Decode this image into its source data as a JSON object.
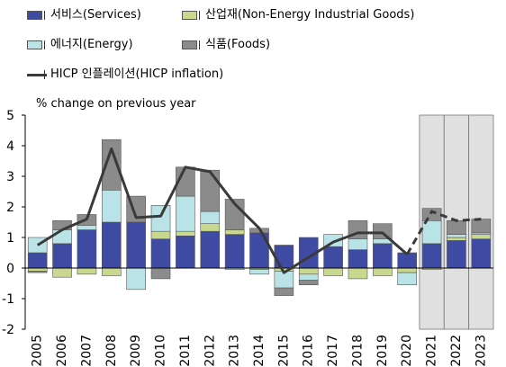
{
  "chart_data": {
    "type": "bar",
    "ylabel": "% change on previous year",
    "ylim": [
      -2,
      5
    ],
    "yticks": [
      -2,
      -1,
      0,
      1,
      2,
      3,
      4,
      5
    ],
    "categories": [
      "2005",
      "2006",
      "2007",
      "2008",
      "2009",
      "2010",
      "2011",
      "2012",
      "2013",
      "2014",
      "2015",
      "2016",
      "2017",
      "2018",
      "2019",
      "2020",
      "2021",
      "2022",
      "2023"
    ],
    "forecast_categories": [
      "2021",
      "2022",
      "2023"
    ],
    "legend": [
      {
        "key": "services",
        "label": "서비스(Services)"
      },
      {
        "key": "neig",
        "label": "산업재(Non-Energy Industrial Goods)"
      },
      {
        "key": "energy",
        "label": "에너지(Energy)"
      },
      {
        "key": "food",
        "label": "식품(Foods)"
      },
      {
        "key": "hicp",
        "label": "HICP 인플레이션(HICP  inflation)"
      }
    ],
    "series": [
      {
        "key": "services",
        "name": "서비스(Services)",
        "color": "#3f4aa3",
        "values": [
          0.5,
          0.8,
          1.25,
          1.5,
          1.5,
          0.95,
          1.05,
          1.2,
          1.1,
          1.15,
          0.75,
          1.0,
          0.7,
          0.6,
          0.8,
          0.5,
          0.8,
          0.9,
          0.95
        ]
      },
      {
        "key": "neig",
        "name": "산업재(Non-Energy Industrial Goods)",
        "color": "#c8d88e",
        "values": [
          -0.1,
          -0.3,
          -0.2,
          -0.25,
          0.0,
          0.25,
          0.15,
          0.25,
          0.15,
          -0.05,
          -0.1,
          -0.2,
          -0.25,
          -0.35,
          -0.25,
          -0.15,
          -0.05,
          0.1,
          0.15
        ]
      },
      {
        "key": "energy",
        "name": "에너지(Energy)",
        "color": "#b9e3e7",
        "values": [
          0.5,
          0.45,
          0.15,
          1.05,
          -0.7,
          0.85,
          1.15,
          0.4,
          -0.05,
          -0.15,
          -0.55,
          -0.2,
          0.4,
          0.35,
          0.15,
          -0.4,
          0.75,
          0.1,
          0.05
        ]
      },
      {
        "key": "food",
        "name": "식품(Foods)",
        "color": "#8b8b8b",
        "values": [
          -0.05,
          0.3,
          0.35,
          1.65,
          0.85,
          -0.35,
          0.95,
          1.35,
          1.0,
          0.15,
          -0.25,
          -0.15,
          0.0,
          0.6,
          0.5,
          0.0,
          0.4,
          0.45,
          0.45
        ]
      },
      {
        "key": "hicp",
        "name": "HICP 인플레이션(HICP  inflation)",
        "color": "#3a3a3a",
        "type": "line",
        "values": [
          0.75,
          1.25,
          1.6,
          3.9,
          1.65,
          1.7,
          3.3,
          3.15,
          2.1,
          1.3,
          -0.15,
          0.35,
          0.85,
          1.15,
          1.15,
          0.45,
          1.85,
          1.55,
          1.6
        ]
      }
    ]
  }
}
